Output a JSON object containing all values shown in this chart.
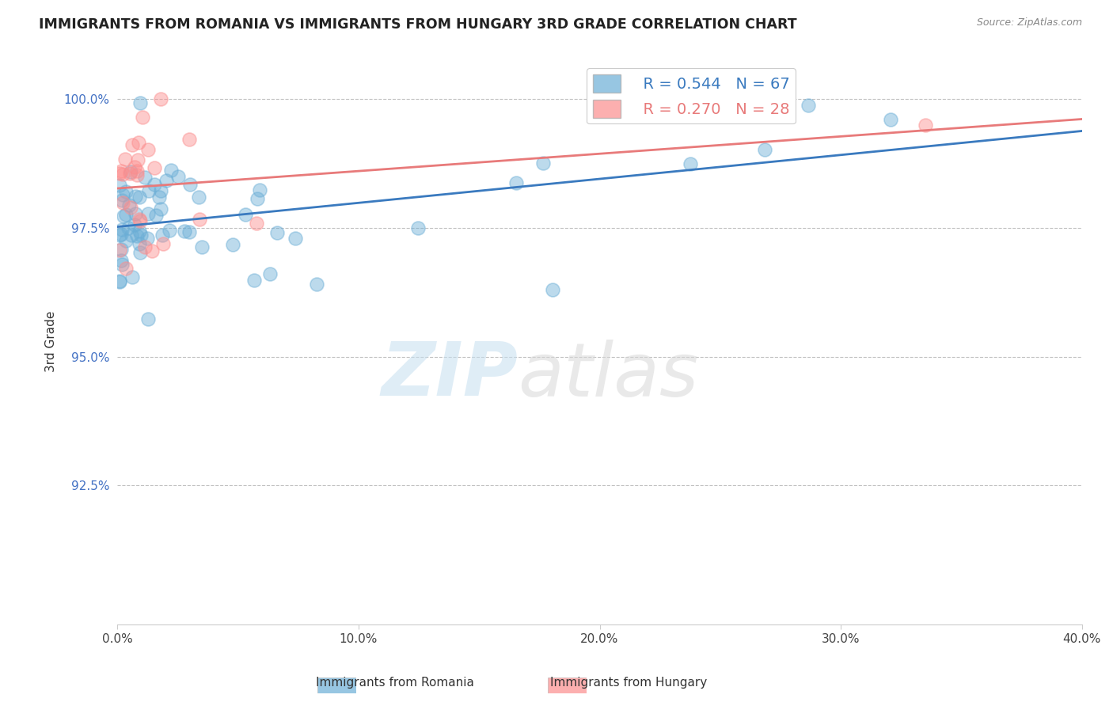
{
  "title": "IMMIGRANTS FROM ROMANIA VS IMMIGRANTS FROM HUNGARY 3RD GRADE CORRELATION CHART",
  "source": "Source: ZipAtlas.com",
  "ylabel": "3rd Grade",
  "xmin": 0.0,
  "xmax": 0.4,
  "ymin": 0.898,
  "ymax": 1.008,
  "yticks": [
    0.925,
    0.95,
    0.975,
    1.0
  ],
  "ytick_labels": [
    "92.5%",
    "95.0%",
    "97.5%",
    "100.0%"
  ],
  "xticks": [
    0.0,
    0.1,
    0.2,
    0.3,
    0.4
  ],
  "xtick_labels": [
    "0.0%",
    "10.0%",
    "20.0%",
    "30.0%",
    "40.0%"
  ],
  "legend_label1": "Immigrants from Romania",
  "legend_label2": "Immigrants from Hungary",
  "R1": 0.544,
  "N1": 67,
  "R2": 0.27,
  "N2": 28,
  "color1": "#6baed6",
  "color2": "#fc8d8d",
  "watermark_zip": "ZIP",
  "watermark_atlas": "atlas",
  "background_color": "#ffffff",
  "grid_color": "#bbbbbb",
  "trendline_color1": "#3a7abf",
  "trendline_color2": "#e87a7a"
}
